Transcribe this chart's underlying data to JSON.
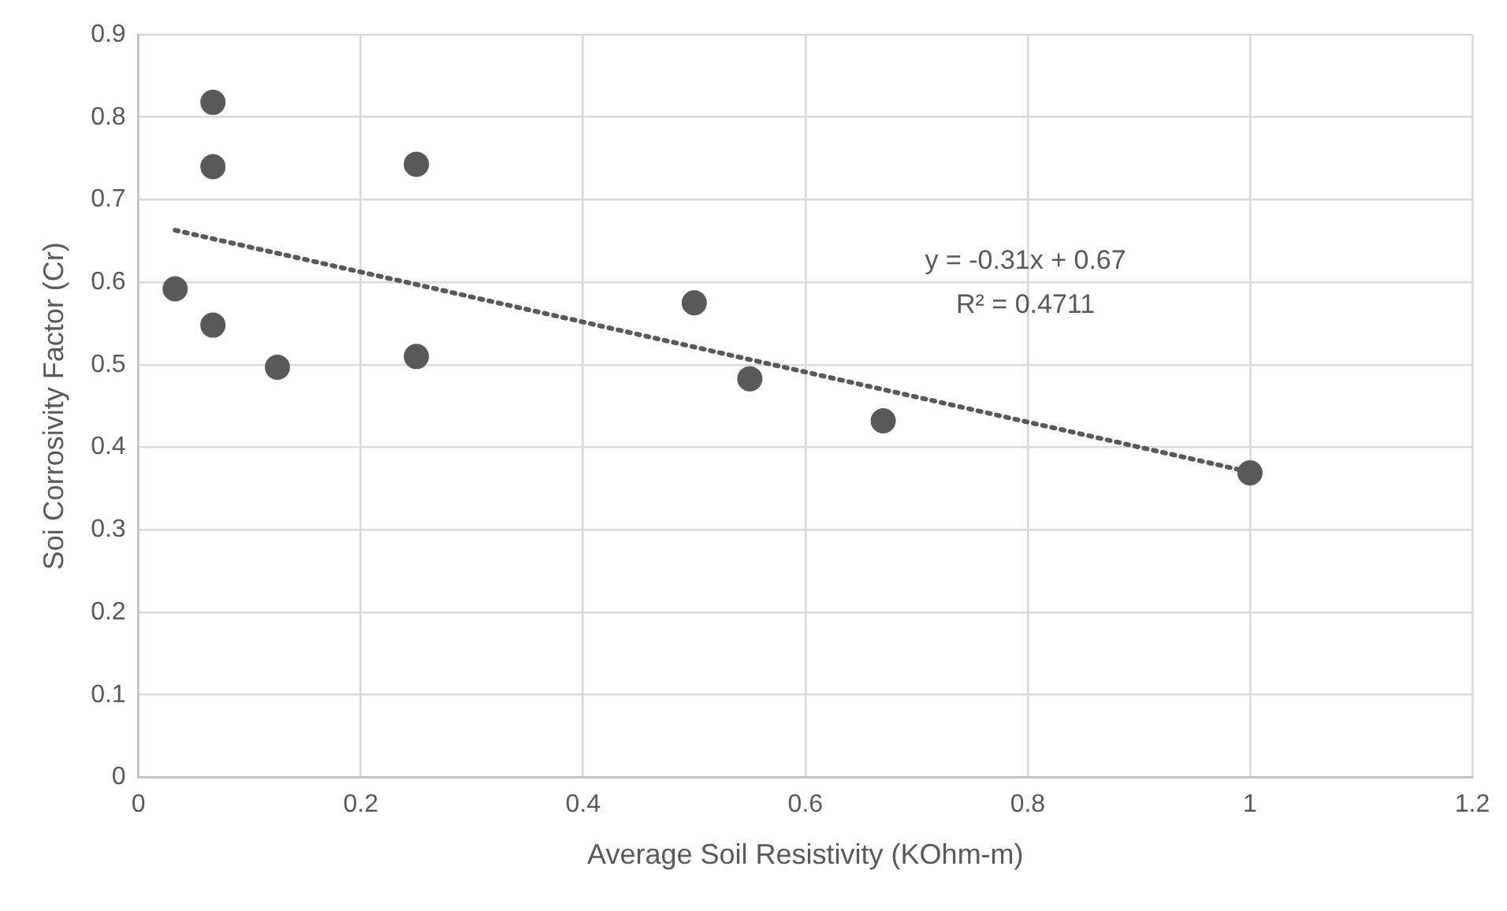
{
  "chart_data": {
    "type": "scatter",
    "xlabel": "Average Soil Resistivity (KOhm-m)",
    "ylabel": "Soi Corrosivity Factor (Cr)",
    "series": [
      {
        "color": "#595959",
        "x": [
          0.033,
          0.067,
          0.067,
          0.067,
          0.125,
          0.25,
          0.25,
          0.5,
          0.55,
          0.67,
          1.0
        ],
        "values": [
          0.592,
          0.818,
          0.74,
          0.548,
          0.497,
          0.743,
          0.51,
          0.575,
          0.483,
          0.432,
          0.369
        ],
        "marker": "circle"
      },
      {
        "type": "line",
        "color": "#595959",
        "x": [
          0.033,
          1.0
        ],
        "values": [
          0.663,
          0.37
        ],
        "line_style": "dotted",
        "marker": "none"
      }
    ],
    "annotations": [
      "y = -0.31x + 0.67",
      "R² = 0.4711"
    ],
    "xlim": [
      0,
      1.2
    ],
    "xticks": [
      0,
      0.2,
      0.4,
      0.6,
      0.8,
      1,
      1.2
    ],
    "ylim": [
      0,
      0.9
    ],
    "yticks": [
      0,
      0.1,
      0.2,
      0.3,
      0.4,
      0.5,
      0.6,
      0.7,
      0.8,
      0.9
    ],
    "grid": true,
    "legend": false
  }
}
